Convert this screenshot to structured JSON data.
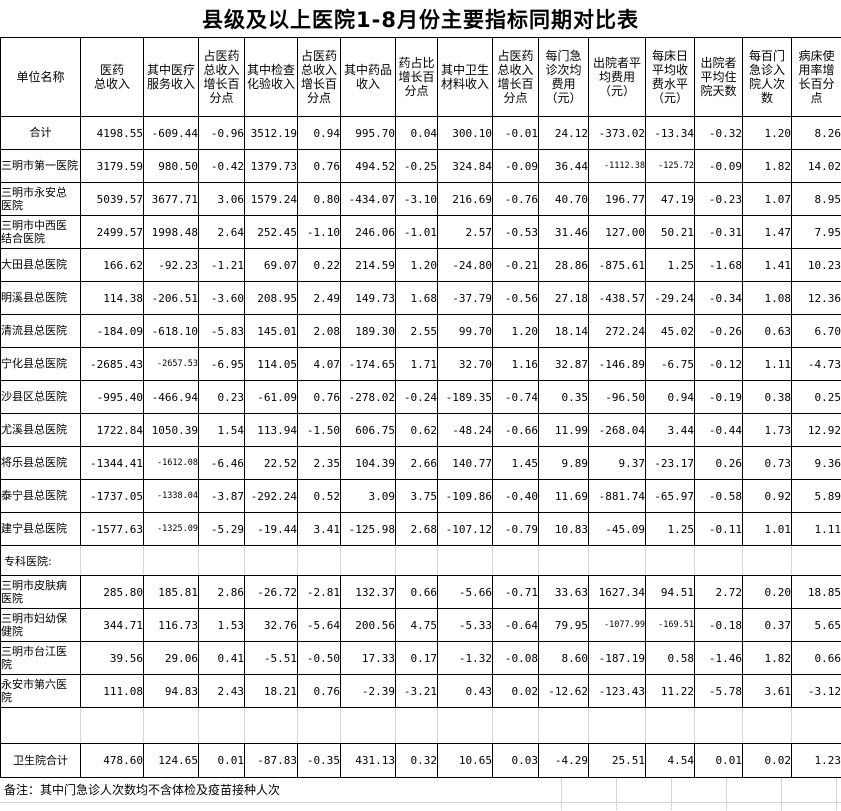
{
  "title": "县级及以上医院1-8月份主要指标同期对比表",
  "note": "备注：其中门急诊人次数均不含体检及疫苗接种人次",
  "table": {
    "unit_header": "单位名称",
    "columns": [
      "医药\n总收入",
      "其中医疗\n服务收入",
      "占医药\n总收入\n增长百\n分点",
      "其中检查\n化验收入",
      "占医药\n总收入\n增长百\n分点",
      "其中药品\n收入",
      "药占比\n增长百\n分点",
      "其中卫生\n材料收入",
      "占医药\n总收入\n增长百\n分点",
      "每门急\n诊次均\n费用\n（元）",
      "出院者平\n均费用\n（元）",
      "每床日\n平均收\n费水平\n（元）",
      "出院者\n平均住\n院天数",
      "每百门\n急诊入\n院人次\n数",
      "病床使\n用率增\n长百分\n点"
    ],
    "rows": [
      {
        "name": "合计",
        "center": true,
        "values": [
          "4198.55",
          "-609.44",
          "-0.96",
          "3512.19",
          "0.94",
          "995.70",
          "0.04",
          "300.10",
          "-0.01",
          "24.12",
          "-373.02",
          "-13.34",
          "-0.32",
          "1.20",
          "8.26"
        ]
      },
      {
        "name": "三明市第一医院",
        "center": false,
        "values": [
          "3179.59",
          "980.50",
          "-0.42",
          "1379.73",
          "0.76",
          "494.52",
          "-0.25",
          "324.84",
          "-0.09",
          "36.44",
          "-1112.38",
          "-125.72",
          "-0.09",
          "1.82",
          "14.02"
        ]
      },
      {
        "name": "三明市永安总\n医院",
        "center": false,
        "values": [
          "5039.57",
          "3677.71",
          "3.06",
          "1579.24",
          "0.80",
          "-434.07",
          "-3.10",
          "216.69",
          "-0.76",
          "40.70",
          "196.77",
          "47.19",
          "-0.23",
          "1.07",
          "8.95"
        ]
      },
      {
        "name": "三明市中西医\n结合医院",
        "center": false,
        "values": [
          "2499.57",
          "1998.48",
          "2.64",
          "252.45",
          "-1.10",
          "246.06",
          "-1.01",
          "2.57",
          "-0.53",
          "31.46",
          "127.00",
          "50.21",
          "-0.31",
          "1.47",
          "7.95"
        ]
      },
      {
        "name": "大田县总医院",
        "center": false,
        "values": [
          "166.62",
          "-92.23",
          "-1.21",
          "69.07",
          "0.22",
          "214.59",
          "1.20",
          "-24.80",
          "-0.21",
          "28.86",
          "-875.61",
          "1.25",
          "-1.68",
          "1.41",
          "10.23"
        ]
      },
      {
        "name": "明溪县总医院",
        "center": false,
        "values": [
          "114.38",
          "-206.51",
          "-3.60",
          "208.95",
          "2.49",
          "149.73",
          "1.68",
          "-37.79",
          "-0.56",
          "27.18",
          "-438.57",
          "-29.24",
          "-0.34",
          "1.08",
          "12.36"
        ]
      },
      {
        "name": "清流县总医院",
        "center": false,
        "values": [
          "-184.09",
          "-618.10",
          "-5.83",
          "145.01",
          "2.08",
          "189.30",
          "2.55",
          "99.70",
          "1.20",
          "18.14",
          "272.24",
          "45.02",
          "-0.26",
          "0.63",
          "6.70"
        ]
      },
      {
        "name": "宁化县总医院",
        "center": false,
        "values": [
          "-2685.43",
          "-2657.53",
          "-6.95",
          "114.05",
          "4.07",
          "-174.65",
          "1.71",
          "32.70",
          "1.16",
          "32.87",
          "-146.89",
          "-6.75",
          "-0.12",
          "1.11",
          "-4.73"
        ]
      },
      {
        "name": "沙县区总医院",
        "center": false,
        "values": [
          "-995.40",
          "-466.94",
          "0.23",
          "-61.09",
          "0.76",
          "-278.02",
          "-0.24",
          "-189.35",
          "-0.74",
          "0.35",
          "-96.50",
          "0.94",
          "-0.19",
          "0.38",
          "0.25"
        ]
      },
      {
        "name": "尤溪县总医院",
        "center": false,
        "values": [
          "1722.84",
          "1050.39",
          "1.54",
          "113.94",
          "-1.50",
          "606.75",
          "0.62",
          "-48.24",
          "-0.66",
          "11.99",
          "-268.04",
          "3.44",
          "-0.44",
          "1.73",
          "12.92"
        ]
      },
      {
        "name": "将乐县总医院",
        "center": false,
        "values": [
          "-1344.41",
          "-1612.08",
          "-6.46",
          "22.52",
          "2.35",
          "104.39",
          "2.66",
          "140.77",
          "1.45",
          "9.89",
          "9.37",
          "-23.17",
          "0.26",
          "0.73",
          "9.36"
        ]
      },
      {
        "name": "泰宁县总医院",
        "center": false,
        "values": [
          "-1737.05",
          "-1338.04",
          "-3.87",
          "-292.24",
          "0.52",
          "3.09",
          "3.75",
          "-109.86",
          "-0.40",
          "11.69",
          "-881.74",
          "-65.97",
          "-0.58",
          "0.92",
          "5.89"
        ]
      },
      {
        "name": "建宁县总医院",
        "center": false,
        "values": [
          "-1577.63",
          "-1325.09",
          "-5.29",
          "-19.44",
          "3.41",
          "-125.98",
          "2.68",
          "-107.12",
          "-0.79",
          "10.83",
          "-45.09",
          "1.25",
          "-0.11",
          "1.01",
          "1.11"
        ]
      }
    ],
    "section_label": "专科医院:",
    "specialty_rows": [
      {
        "name": "三明市皮肤病\n医院",
        "center": false,
        "values": [
          "285.80",
          "185.81",
          "2.86",
          "-26.72",
          "-2.81",
          "132.37",
          "0.66",
          "-5.66",
          "-0.71",
          "33.63",
          "1627.34",
          "94.51",
          "2.72",
          "0.20",
          "18.85"
        ]
      },
      {
        "name": "三明市妇幼保\n健院",
        "center": false,
        "values": [
          "344.71",
          "116.73",
          "1.53",
          "32.76",
          "-5.64",
          "200.56",
          "4.75",
          "-5.33",
          "-0.64",
          "79.95",
          "-1077.99",
          "-169.51",
          "-0.18",
          "0.37",
          "5.65"
        ]
      },
      {
        "name": "三明市台江医\n院",
        "center": false,
        "values": [
          "39.56",
          "29.06",
          "0.41",
          "-5.51",
          "-0.50",
          "17.33",
          "0.17",
          "-1.32",
          "-0.08",
          "8.60",
          "-187.19",
          "0.58",
          "-1.46",
          "1.82",
          "0.66"
        ]
      },
      {
        "name": "永安市第六医\n院",
        "center": false,
        "values": [
          "111.08",
          "94.83",
          "2.43",
          "18.21",
          "0.76",
          "-2.39",
          "-3.21",
          "0.43",
          "0.02",
          "-12.62",
          "-123.43",
          "11.22",
          "-5.78",
          "3.61",
          "-3.12"
        ]
      }
    ],
    "summary_row": {
      "name": "卫生院合计",
      "center": true,
      "values": [
        "478.60",
        "124.65",
        "0.01",
        "-87.83",
        "-0.35",
        "431.13",
        "0.32",
        "10.65",
        "0.03",
        "-4.29",
        "25.51",
        "4.54",
        "0.01",
        "0.02",
        "1.23"
      ]
    }
  }
}
